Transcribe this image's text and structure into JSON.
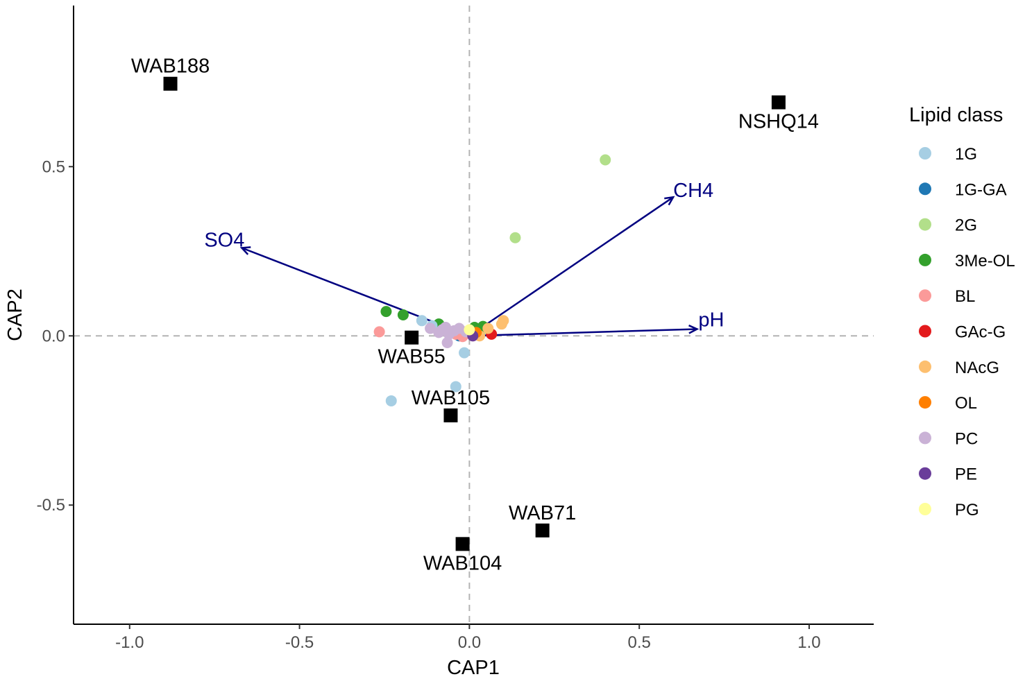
{
  "chart_data": {
    "type": "scatter",
    "title": "",
    "xlabel": "CAP1",
    "ylabel": "CAP2",
    "xlim": [
      -1.165,
      1.19
    ],
    "ylim": [
      -0.852,
      0.976
    ],
    "x_ticks": [
      -1.0,
      -0.5,
      0.0,
      0.5,
      1.0
    ],
    "x_tick_labels": [
      "-1.0",
      "-0.5",
      "0.0",
      "0.5",
      "1.0"
    ],
    "y_ticks": [
      -0.5,
      0.0,
      0.5
    ],
    "y_tick_labels": [
      "-0.5",
      "0.0",
      "0.5"
    ],
    "grid": false,
    "reference_lines": {
      "x": 0,
      "y": 0,
      "style": "dashed",
      "color": "#b3b3b3"
    },
    "legend": {
      "title": "Lipid class",
      "placement": "right",
      "entries": [
        {
          "label": "1G",
          "color": "#a6cee3"
        },
        {
          "label": "1G-GA",
          "color": "#1f78b4"
        },
        {
          "label": "2G",
          "color": "#b2df8a"
        },
        {
          "label": "3Me-OL",
          "color": "#33a02c"
        },
        {
          "label": "BL",
          "color": "#fb9a99"
        },
        {
          "label": "GAc-G",
          "color": "#e31a1c"
        },
        {
          "label": "NAcG",
          "color": "#fdbf6f"
        },
        {
          "label": "OL",
          "color": "#ff7f00"
        },
        {
          "label": "PC",
          "color": "#cab2d6"
        },
        {
          "label": "PE",
          "color": "#6a3d9a"
        },
        {
          "label": "PG",
          "color": "#ffff99"
        }
      ]
    },
    "sites": [
      {
        "label": "WAB188",
        "x": -0.88,
        "y": 0.745,
        "label_pos": "above"
      },
      {
        "label": "NSHQ14",
        "x": 0.91,
        "y": 0.69,
        "label_pos": "below"
      },
      {
        "label": "WAB55",
        "x": -0.17,
        "y": -0.005,
        "label_pos": "below"
      },
      {
        "label": "WAB105",
        "x": -0.055,
        "y": -0.235,
        "label_pos": "above"
      },
      {
        "label": "WAB71",
        "x": 0.215,
        "y": -0.575,
        "label_pos": "above"
      },
      {
        "label": "WAB104",
        "x": -0.02,
        "y": -0.615,
        "label_pos": "below"
      }
    ],
    "vectors": [
      {
        "label": "CH4",
        "x": 0.6,
        "y": 0.41,
        "color": "#000080"
      },
      {
        "label": "SO4",
        "x": -0.67,
        "y": 0.26,
        "color": "#000080"
      },
      {
        "label": "pH",
        "x": 0.67,
        "y": 0.02,
        "color": "#000080"
      }
    ],
    "points": [
      {
        "class": "2G",
        "x": 0.4,
        "y": 0.52
      },
      {
        "class": "2G",
        "x": 0.135,
        "y": 0.29
      },
      {
        "class": "2G",
        "x": 0.04,
        "y": 0.02
      },
      {
        "class": "3Me-OL",
        "x": -0.245,
        "y": 0.072
      },
      {
        "class": "3Me-OL",
        "x": -0.195,
        "y": 0.062
      },
      {
        "class": "3Me-OL",
        "x": -0.09,
        "y": 0.035
      },
      {
        "class": "3Me-OL",
        "x": 0.015,
        "y": 0.025
      },
      {
        "class": "3Me-OL",
        "x": 0.04,
        "y": 0.028
      },
      {
        "class": "1G",
        "x": -0.14,
        "y": 0.045
      },
      {
        "class": "1G",
        "x": -0.015,
        "y": -0.05
      },
      {
        "class": "1G",
        "x": -0.04,
        "y": -0.15
      },
      {
        "class": "1G",
        "x": -0.23,
        "y": -0.192
      },
      {
        "class": "1G",
        "x": -0.11,
        "y": 0.03
      },
      {
        "class": "1G-GA",
        "x": -0.03,
        "y": 0.0
      },
      {
        "class": "BL",
        "x": -0.265,
        "y": 0.012
      },
      {
        "class": "BL",
        "x": -0.04,
        "y": 0.005
      },
      {
        "class": "BL",
        "x": -0.02,
        "y": -0.002
      },
      {
        "class": "BL",
        "x": 0.01,
        "y": 0.0
      },
      {
        "class": "GAc-G",
        "x": 0.065,
        "y": 0.005
      },
      {
        "class": "NAcG",
        "x": 0.1,
        "y": 0.045
      },
      {
        "class": "NAcG",
        "x": 0.095,
        "y": 0.035
      },
      {
        "class": "NAcG",
        "x": 0.055,
        "y": 0.022
      },
      {
        "class": "NAcG",
        "x": 0.03,
        "y": 0.0
      },
      {
        "class": "OL",
        "x": 0.02,
        "y": 0.01
      },
      {
        "class": "PC",
        "x": -0.115,
        "y": 0.022
      },
      {
        "class": "PC",
        "x": -0.09,
        "y": 0.01
      },
      {
        "class": "PC",
        "x": -0.07,
        "y": 0.025
      },
      {
        "class": "PC",
        "x": -0.06,
        "y": 0.005
      },
      {
        "class": "PC",
        "x": -0.045,
        "y": 0.015
      },
      {
        "class": "PC",
        "x": -0.03,
        "y": 0.022
      },
      {
        "class": "PC",
        "x": -0.065,
        "y": -0.02
      },
      {
        "class": "PC",
        "x": -0.08,
        "y": 0.018
      },
      {
        "class": "PC",
        "x": -0.01,
        "y": 0.012
      },
      {
        "class": "PE",
        "x": 0.01,
        "y": 0.0
      },
      {
        "class": "PG",
        "x": 0.0,
        "y": 0.018
      }
    ]
  }
}
